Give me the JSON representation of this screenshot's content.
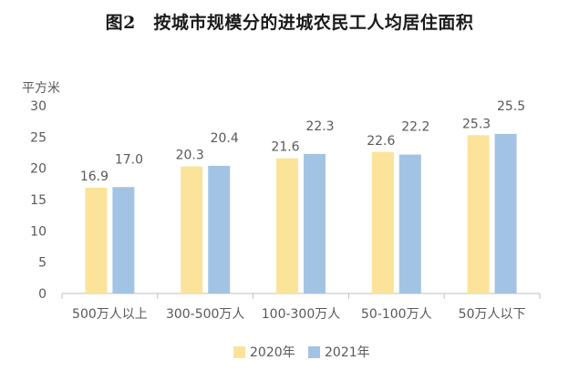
{
  "chart_data": {
    "type": "bar",
    "title": "图2　按城市规模分的进城农民工人均居住面积",
    "ylabel": "平方米",
    "xlabel": "",
    "ylim": [
      0,
      30
    ],
    "yticks": [
      0,
      5,
      10,
      15,
      20,
      25,
      30
    ],
    "grid": false,
    "legend_position": "bottom-center",
    "categories": [
      "500万人以上",
      "300-500万人",
      "100-300万人",
      "50-100万人",
      "50万人以下"
    ],
    "series": [
      {
        "name": "2020年",
        "color": "#FCE39A",
        "values": [
          16.9,
          20.3,
          21.6,
          22.6,
          25.3
        ],
        "labels": [
          "16.9",
          "20.3",
          "21.6",
          "22.6",
          "25.3"
        ]
      },
      {
        "name": "2021年",
        "color": "#A3C3E4",
        "values": [
          17.0,
          20.4,
          22.3,
          22.2,
          25.5
        ],
        "labels": [
          "17.0",
          "20.4",
          "22.3",
          "22.2",
          "25.5"
        ]
      }
    ],
    "colors": {
      "axis": "#BFBFBF",
      "text": "#595959"
    }
  }
}
